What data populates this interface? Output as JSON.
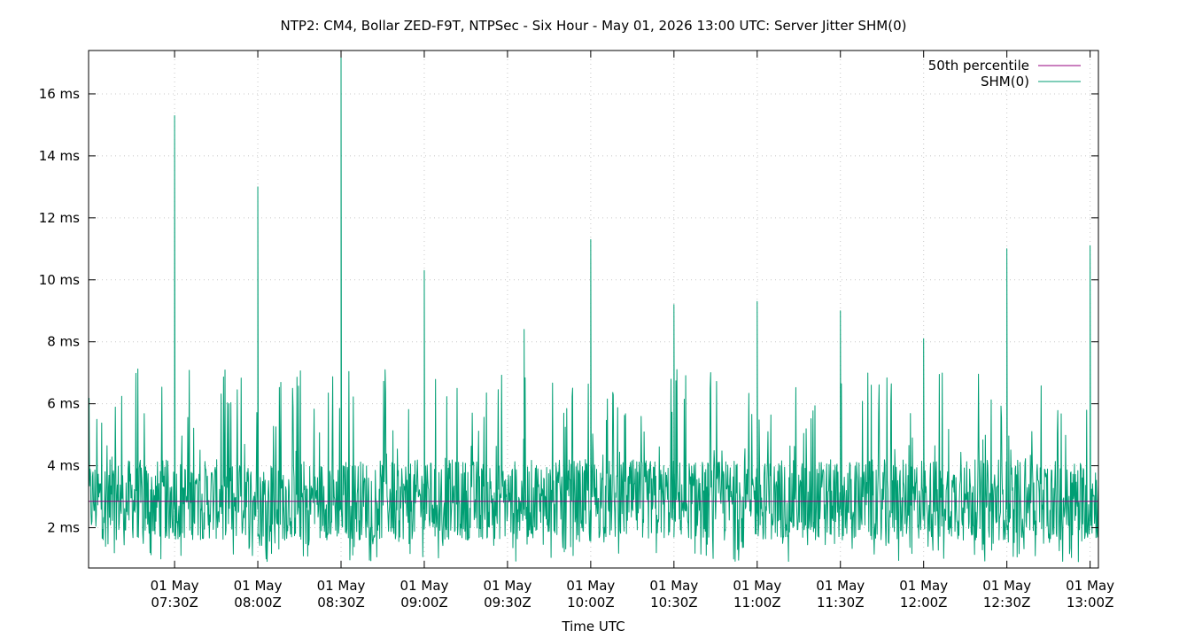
{
  "chart_data": {
    "type": "line",
    "title": "NTP2: CM4, Bollar ZED-F9T, NTPSec - Six Hour - May 01, 2026 13:00 UTC: Server Jitter SHM(0)",
    "xlabel": "Time UTC",
    "ylabel": "",
    "xlim": [
      "2026-05-01T06:59Z",
      "2026-05-01T13:03Z"
    ],
    "ylim": [
      0.7,
      17.4
    ],
    "y_ticks": [
      {
        "value": 2,
        "label": "2 ms"
      },
      {
        "value": 4,
        "label": "4 ms"
      },
      {
        "value": 6,
        "label": "6 ms"
      },
      {
        "value": 8,
        "label": "8 ms"
      },
      {
        "value": 10,
        "label": "10 ms"
      },
      {
        "value": 12,
        "label": "12 ms"
      },
      {
        "value": 14,
        "label": "14 ms"
      },
      {
        "value": 16,
        "label": "16 ms"
      }
    ],
    "x_ticks": [
      {
        "value": "2026-05-01T07:30Z",
        "line1": "01 May",
        "line2": "07:30Z"
      },
      {
        "value": "2026-05-01T08:00Z",
        "line1": "01 May",
        "line2": "08:00Z"
      },
      {
        "value": "2026-05-01T08:30Z",
        "line1": "01 May",
        "line2": "08:30Z"
      },
      {
        "value": "2026-05-01T09:00Z",
        "line1": "01 May",
        "line2": "09:00Z"
      },
      {
        "value": "2026-05-01T09:30Z",
        "line1": "01 May",
        "line2": "09:30Z"
      },
      {
        "value": "2026-05-01T10:00Z",
        "line1": "01 May",
        "line2": "10:00Z"
      },
      {
        "value": "2026-05-01T10:30Z",
        "line1": "01 May",
        "line2": "10:30Z"
      },
      {
        "value": "2026-05-01T11:00Z",
        "line1": "01 May",
        "line2": "11:00Z"
      },
      {
        "value": "2026-05-01T11:30Z",
        "line1": "01 May",
        "line2": "11:30Z"
      },
      {
        "value": "2026-05-01T12:00Z",
        "line1": "01 May",
        "line2": "12:00Z"
      },
      {
        "value": "2026-05-01T12:30Z",
        "line1": "01 May",
        "line2": "12:30Z"
      },
      {
        "value": "2026-05-01T13:00Z",
        "line1": "01 May",
        "line2": "13:00Z"
      }
    ],
    "grid": true,
    "legend_position": "top-right",
    "series": [
      {
        "name": "50th percentile",
        "color": "#94007f",
        "x": [
          "2026-05-01T06:59Z",
          "2026-05-01T13:03Z"
        ],
        "values": [
          2.85,
          2.85
        ]
      },
      {
        "name": "SHM(0)",
        "color": "#009e73",
        "x": [
          "2026-05-01T06:59Z",
          "2026-05-01T07:06Z",
          "2026-05-01T07:12Z",
          "2026-05-01T07:18Z",
          "2026-05-01T07:24Z",
          "2026-05-01T07:30Z",
          "2026-05-01T07:36Z",
          "2026-05-01T07:42Z",
          "2026-05-01T07:48Z",
          "2026-05-01T07:54Z",
          "2026-05-01T08:00Z",
          "2026-05-01T08:06Z",
          "2026-05-01T08:12Z",
          "2026-05-01T08:18Z",
          "2026-05-01T08:24Z",
          "2026-05-01T08:30Z",
          "2026-05-01T08:36Z",
          "2026-05-01T08:42Z",
          "2026-05-01T08:48Z",
          "2026-05-01T08:54Z",
          "2026-05-01T09:00Z",
          "2026-05-01T09:06Z",
          "2026-05-01T09:12Z",
          "2026-05-01T09:18Z",
          "2026-05-01T09:24Z",
          "2026-05-01T09:30Z",
          "2026-05-01T09:36Z",
          "2026-05-01T09:42Z",
          "2026-05-01T09:48Z",
          "2026-05-01T09:54Z",
          "2026-05-01T10:00Z",
          "2026-05-01T10:06Z",
          "2026-05-01T10:12Z",
          "2026-05-01T10:18Z",
          "2026-05-01T10:24Z",
          "2026-05-01T10:30Z",
          "2026-05-01T10:36Z",
          "2026-05-01T10:42Z",
          "2026-05-01T10:48Z",
          "2026-05-01T10:54Z",
          "2026-05-01T11:00Z",
          "2026-05-01T11:06Z",
          "2026-05-01T11:12Z",
          "2026-05-01T11:18Z",
          "2026-05-01T11:24Z",
          "2026-05-01T11:30Z",
          "2026-05-01T11:36Z",
          "2026-05-01T11:42Z",
          "2026-05-01T11:48Z",
          "2026-05-01T11:54Z",
          "2026-05-01T12:00Z",
          "2026-05-01T12:06Z",
          "2026-05-01T12:12Z",
          "2026-05-01T12:18Z",
          "2026-05-01T12:24Z",
          "2026-05-01T12:30Z",
          "2026-05-01T12:36Z",
          "2026-05-01T12:42Z",
          "2026-05-01T12:48Z",
          "2026-05-01T12:54Z",
          "2026-05-01T13:00Z",
          "2026-05-01T13:03Z"
        ],
        "values": [
          3.2,
          3.5,
          2.9,
          4.1,
          3.0,
          15.3,
          3.4,
          2.8,
          5.6,
          3.1,
          13.0,
          3.6,
          3.2,
          4.4,
          3.0,
          17.4,
          3.8,
          3.3,
          4.6,
          3.2,
          10.3,
          3.5,
          4.8,
          3.1,
          3.7,
          3.4,
          8.4,
          3.0,
          4.2,
          3.6,
          11.3,
          3.3,
          2.9,
          4.5,
          3.1,
          9.2,
          3.4,
          2.7,
          4.3,
          3.2,
          9.3,
          3.0,
          3.5,
          2.8,
          4.0,
          9.0,
          3.3,
          2.9,
          4.1,
          3.1,
          8.1,
          3.4,
          2.8,
          3.9,
          3.0,
          11.0,
          3.6,
          2.9,
          4.4,
          3.2,
          11.1,
          3.4
        ]
      }
    ]
  }
}
